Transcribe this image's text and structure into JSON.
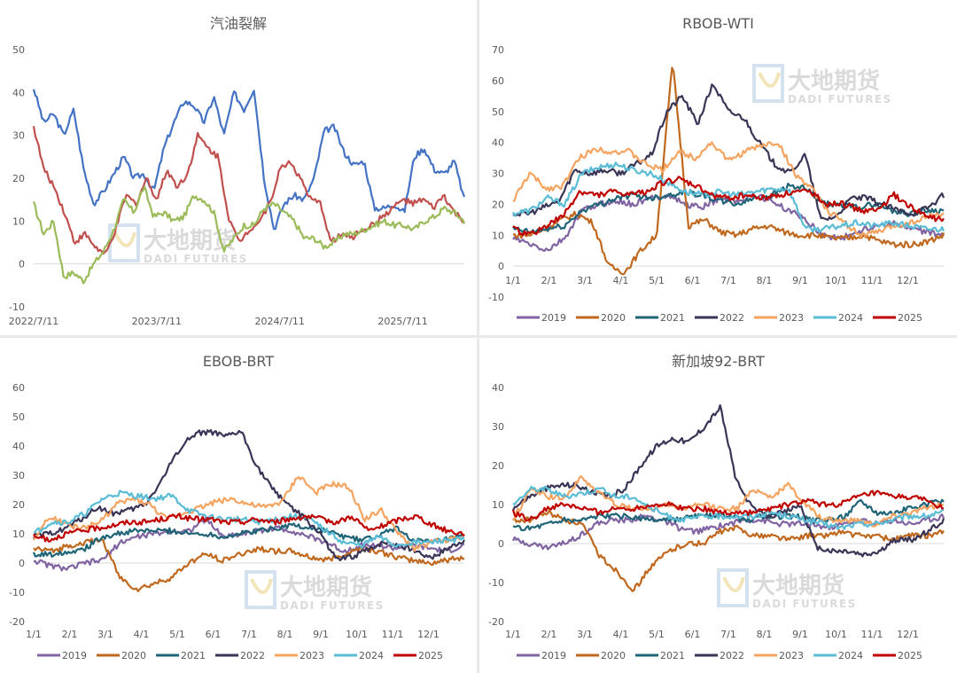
{
  "watermark": {
    "cn": "大地期货",
    "en": "DADI FUTURES"
  },
  "chart_data": [
    {
      "type": "line",
      "title": "汽油裂解",
      "xlabel": "",
      "ylabel": "",
      "ylim": [
        -10,
        50
      ],
      "yticks": [
        -10,
        0,
        10,
        20,
        30,
        40,
        50
      ],
      "xticks": [
        "2022/7/11",
        "2023/7/11",
        "2024/7/11",
        "2025/7/11"
      ],
      "x_index_range": [
        0,
        42
      ],
      "xtick_index": [
        0,
        12,
        24,
        36
      ],
      "legend": "none",
      "series": [
        {
          "name": "series-blue",
          "color": "#4472c4",
          "values": [
            41,
            33,
            35,
            30,
            36,
            22,
            14,
            17,
            21,
            25,
            20,
            21,
            17,
            27,
            33,
            38,
            37,
            33,
            39,
            30,
            40,
            36,
            41,
            20,
            8,
            14,
            16,
            15,
            20,
            31,
            32,
            26,
            23,
            24,
            13,
            13,
            14,
            12,
            25,
            27,
            22,
            21,
            24,
            15
          ]
        },
        {
          "name": "series-red",
          "color": "#c0504d",
          "values": [
            32,
            22,
            18,
            12,
            5,
            7,
            4,
            2,
            8,
            16,
            14,
            20,
            15,
            22,
            18,
            21,
            30,
            27,
            25,
            11,
            5,
            8,
            10,
            14,
            22,
            24,
            20,
            15,
            14,
            5,
            7,
            6,
            8,
            9,
            11,
            13,
            15,
            14,
            15,
            13,
            16,
            12,
            10
          ]
        },
        {
          "name": "series-green",
          "color": "#9bbb59",
          "values": [
            14,
            7,
            10,
            -3,
            -2,
            -4,
            0,
            3,
            8,
            15,
            12,
            18,
            11,
            12,
            10,
            11,
            16,
            15,
            12,
            3,
            6,
            9,
            9,
            13,
            14,
            12,
            10,
            6,
            6,
            4,
            5,
            7,
            7,
            8,
            9,
            10,
            9,
            9,
            8,
            10,
            11,
            13,
            12,
            10
          ]
        }
      ]
    },
    {
      "type": "line",
      "title": "RBOB-WTI",
      "xlabel": "",
      "ylabel": "",
      "ylim": [
        -10,
        70
      ],
      "yticks": [
        -10,
        0,
        10,
        20,
        30,
        40,
        50,
        60,
        70
      ],
      "xticks": [
        "1/1",
        "2/1",
        "3/1",
        "4/1",
        "5/1",
        "6/1",
        "7/1",
        "8/1",
        "9/1",
        "10/1",
        "11/1",
        "12/1"
      ],
      "legend": "bottom",
      "x_months_range": [
        0,
        12
      ],
      "series": [
        {
          "name": "2019",
          "color": "#8064a2",
          "values": [
            9,
            7,
            5,
            9,
            18,
            20,
            21,
            20,
            22,
            23,
            20,
            19,
            22,
            21,
            23,
            21,
            18,
            15,
            10,
            9,
            11,
            13,
            14,
            12,
            11,
            10
          ]
        },
        {
          "name": "2020",
          "color": "#c0691e",
          "values": [
            10,
            10,
            12,
            15,
            17,
            14,
            0,
            -2,
            5,
            10,
            66,
            13,
            15,
            11,
            10,
            12,
            13,
            11,
            10,
            10,
            9,
            9,
            10,
            8,
            7,
            7,
            8,
            10
          ]
        },
        {
          "name": "2021",
          "color": "#1f6477",
          "values": [
            12,
            11,
            12,
            13,
            18,
            20,
            22,
            23,
            22,
            23,
            24,
            23,
            21,
            20,
            22,
            23,
            26,
            25,
            20,
            20,
            19,
            20,
            18,
            17,
            18,
            18
          ]
        },
        {
          "name": "2022",
          "color": "#3a3556",
          "values": [
            17,
            17,
            19,
            21,
            31,
            30,
            31,
            30,
            33,
            36,
            50,
            55,
            46,
            59,
            50,
            48,
            40,
            33,
            30,
            36,
            15,
            16,
            22,
            22,
            20,
            18,
            17,
            19,
            23
          ]
        },
        {
          "name": "2023",
          "color": "#f4a460",
          "values": [
            21,
            30,
            25,
            26,
            35,
            38,
            37,
            37,
            33,
            31,
            37,
            35,
            40,
            34,
            37,
            39,
            40,
            30,
            25,
            18,
            14,
            10,
            11,
            13,
            14,
            16,
            17
          ]
        },
        {
          "name": "2024",
          "color": "#5bbcd6",
          "values": [
            17,
            18,
            22,
            20,
            30,
            32,
            33,
            31,
            30,
            27,
            24,
            23,
            24,
            23,
            24,
            25,
            25,
            12,
            12,
            13,
            14,
            13,
            14,
            13,
            12,
            12
          ]
        },
        {
          "name": "2025",
          "color": "#c00000",
          "values": [
            12,
            10,
            13,
            16,
            24,
            23,
            24,
            23,
            24,
            27,
            28,
            26,
            23,
            22,
            23,
            22,
            23,
            24,
            24,
            20,
            20,
            18,
            18,
            23,
            19,
            16,
            15
          ]
        }
      ]
    },
    {
      "type": "line",
      "title": "EBOB-BRT",
      "xlabel": "",
      "ylabel": "",
      "ylim": [
        -20,
        60
      ],
      "yticks": [
        -20,
        -10,
        0,
        10,
        20,
        30,
        40,
        50,
        60
      ],
      "xticks": [
        "1/1",
        "2/1",
        "3/1",
        "4/1",
        "5/1",
        "6/1",
        "7/1",
        "8/1",
        "9/1",
        "10/1",
        "11/1",
        "12/1"
      ],
      "legend": "bottom",
      "x_months_range": [
        0,
        12
      ],
      "series": [
        {
          "name": "2019",
          "color": "#8064a2",
          "values": [
            1,
            -1,
            -2,
            0,
            1,
            7,
            9,
            10,
            11,
            11,
            15,
            9,
            10,
            11,
            12,
            11,
            9,
            7,
            4,
            6,
            6,
            5,
            6,
            5,
            4,
            6
          ]
        },
        {
          "name": "2020",
          "color": "#c0691e",
          "values": [
            5,
            4,
            6,
            7,
            8,
            -5,
            -9,
            -7,
            -5,
            0,
            3,
            1,
            3,
            5,
            4,
            4,
            2,
            1,
            3,
            5,
            4,
            2,
            1,
            0,
            1,
            2
          ]
        },
        {
          "name": "2021",
          "color": "#1f6477",
          "values": [
            3,
            3,
            4,
            5,
            9,
            10,
            11,
            11,
            11,
            10,
            10,
            9,
            10,
            11,
            12,
            13,
            12,
            11,
            9,
            8,
            9,
            12,
            8,
            7,
            8,
            9
          ]
        },
        {
          "name": "2022",
          "color": "#3a3556",
          "values": [
            9,
            10,
            12,
            15,
            19,
            17,
            18,
            20,
            28,
            38,
            44,
            45,
            43,
            45,
            33,
            25,
            20,
            15,
            10,
            1,
            2,
            5,
            7,
            6,
            4,
            2,
            5,
            8
          ]
        },
        {
          "name": "2023",
          "color": "#f4a460",
          "values": [
            8,
            16,
            13,
            12,
            14,
            20,
            22,
            20,
            15,
            17,
            19,
            21,
            22,
            20,
            19,
            21,
            30,
            24,
            27,
            26,
            15,
            18,
            10,
            5,
            7,
            8,
            9
          ]
        },
        {
          "name": "2024",
          "color": "#5bbcd6",
          "values": [
            10,
            14,
            14,
            17,
            22,
            24,
            23,
            22,
            23,
            18,
            16,
            15,
            15,
            14,
            15,
            16,
            15,
            11,
            7,
            6,
            9,
            6,
            7,
            7,
            8,
            8
          ]
        },
        {
          "name": "2025",
          "color": "#c00000",
          "values": [
            9,
            8,
            10,
            11,
            12,
            13,
            14,
            14,
            15,
            16,
            15,
            15,
            14,
            14,
            15,
            14,
            15,
            16,
            15,
            14,
            16,
            11,
            13,
            15,
            16,
            13,
            11,
            10
          ]
        }
      ]
    },
    {
      "type": "line",
      "title": "新加坡92-BRT",
      "xlabel": "",
      "ylabel": "",
      "ylim": [
        -20,
        40
      ],
      "yticks": [
        -20,
        -10,
        0,
        10,
        20,
        30,
        40
      ],
      "xticks": [
        "1/1",
        "2/1",
        "3/1",
        "4/1",
        "5/1",
        "6/1",
        "7/1",
        "8/1",
        "9/1",
        "10/1",
        "11/1",
        "12/1"
      ],
      "legend": "bottom",
      "x_months_range": [
        0,
        12
      ],
      "series": [
        {
          "name": "2019",
          "color": "#8064a2",
          "values": [
            1,
            0,
            -1,
            0,
            2,
            5,
            6,
            6,
            7,
            6,
            4,
            3,
            4,
            5,
            6,
            6,
            5,
            5,
            5,
            4,
            5,
            6,
            5,
            6,
            5,
            6,
            7
          ]
        },
        {
          "name": "2020",
          "color": "#c0691e",
          "values": [
            6,
            6,
            8,
            6,
            5,
            -3,
            -7,
            -12,
            -6,
            -2,
            0,
            0,
            3,
            4,
            2,
            2,
            1,
            2,
            2,
            3,
            2,
            2,
            1,
            2,
            2,
            3
          ]
        },
        {
          "name": "2021",
          "color": "#1f6477",
          "values": [
            4,
            4,
            5,
            6,
            6,
            7,
            7,
            7,
            6,
            6,
            6,
            7,
            7,
            7,
            6,
            7,
            7,
            7,
            6,
            6,
            7,
            11,
            8,
            8,
            9,
            10,
            11
          ]
        },
        {
          "name": "2022",
          "color": "#3a3556",
          "values": [
            9,
            12,
            14,
            15,
            15,
            13,
            12,
            14,
            20,
            25,
            27,
            26,
            30,
            35,
            16,
            9,
            7,
            8,
            10,
            -1,
            -2,
            -2,
            -3,
            -2,
            1,
            1,
            3,
            6
          ]
        },
        {
          "name": "2023",
          "color": "#f4a460",
          "values": [
            6,
            14,
            12,
            12,
            17,
            13,
            10,
            9,
            9,
            10,
            9,
            10,
            9,
            9,
            14,
            12,
            15,
            10,
            6,
            6,
            6,
            5,
            7,
            8,
            9,
            10
          ]
        },
        {
          "name": "2024",
          "color": "#5bbcd6",
          "values": [
            10,
            14,
            14,
            12,
            13,
            14,
            12,
            12,
            9,
            7,
            6,
            7,
            7,
            7,
            7,
            8,
            7,
            6,
            5,
            4,
            5,
            5,
            6,
            7,
            7,
            8
          ]
        },
        {
          "name": "2025",
          "color": "#c00000",
          "values": [
            8,
            6,
            9,
            10,
            9,
            8,
            9,
            9,
            10,
            10,
            9,
            9,
            8,
            8,
            8,
            9,
            10,
            11,
            10,
            10,
            12,
            13,
            12,
            12,
            11,
            9
          ]
        }
      ]
    }
  ]
}
